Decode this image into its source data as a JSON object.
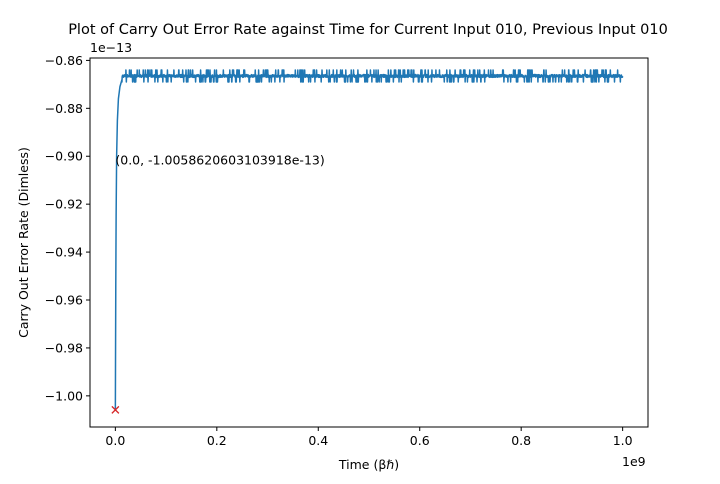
{
  "chart_data": {
    "type": "line",
    "title": "Plot of Carry Out Error Rate against Time for Current Input 010, Previous Input 010",
    "xlabel": "Time (βℏ)",
    "ylabel": "Carry Out Error Rate (Dimless)",
    "x_offset_text": "1e9",
    "y_offset_text": "1e−13",
    "xlim": [
      -0.05,
      1.05
    ],
    "ylim": [
      -1.013,
      -0.859
    ],
    "x_ticks": [
      0.0,
      0.2,
      0.4,
      0.6,
      0.8,
      1.0
    ],
    "x_tick_labels": [
      "0.0",
      "0.2",
      "0.4",
      "0.6",
      "0.8",
      "1.0"
    ],
    "y_ticks": [
      -1.0,
      -0.98,
      -0.96,
      -0.94,
      -0.92,
      -0.9,
      -0.88,
      -0.86
    ],
    "y_tick_labels": [
      "−1.00",
      "−0.98",
      "−0.96",
      "−0.94",
      "−0.92",
      "−0.90",
      "−0.88",
      "−0.86"
    ],
    "series": [
      {
        "color": "#1f77b4",
        "rise": {
          "x": [
            0.0,
            0.0003,
            0.0008,
            0.0015,
            0.0025,
            0.004,
            0.006,
            0.009,
            0.013
          ],
          "y": [
            -1.0059,
            -0.985,
            -0.955,
            -0.925,
            -0.9,
            -0.885,
            -0.876,
            -0.871,
            -0.868
          ]
        },
        "plateau": {
          "x_start": 0.013,
          "x_end": 1.0,
          "base": -0.8665,
          "upper": -0.864,
          "lower": -0.869
        }
      }
    ],
    "marker": {
      "x": 0.0,
      "y": -1.0058620603103918,
      "symbol": "x",
      "color": "#d62728"
    },
    "annotation": {
      "text": "(0.0, -1.0058620603103918e-13)",
      "x": 0.0,
      "y": -0.9035
    }
  }
}
